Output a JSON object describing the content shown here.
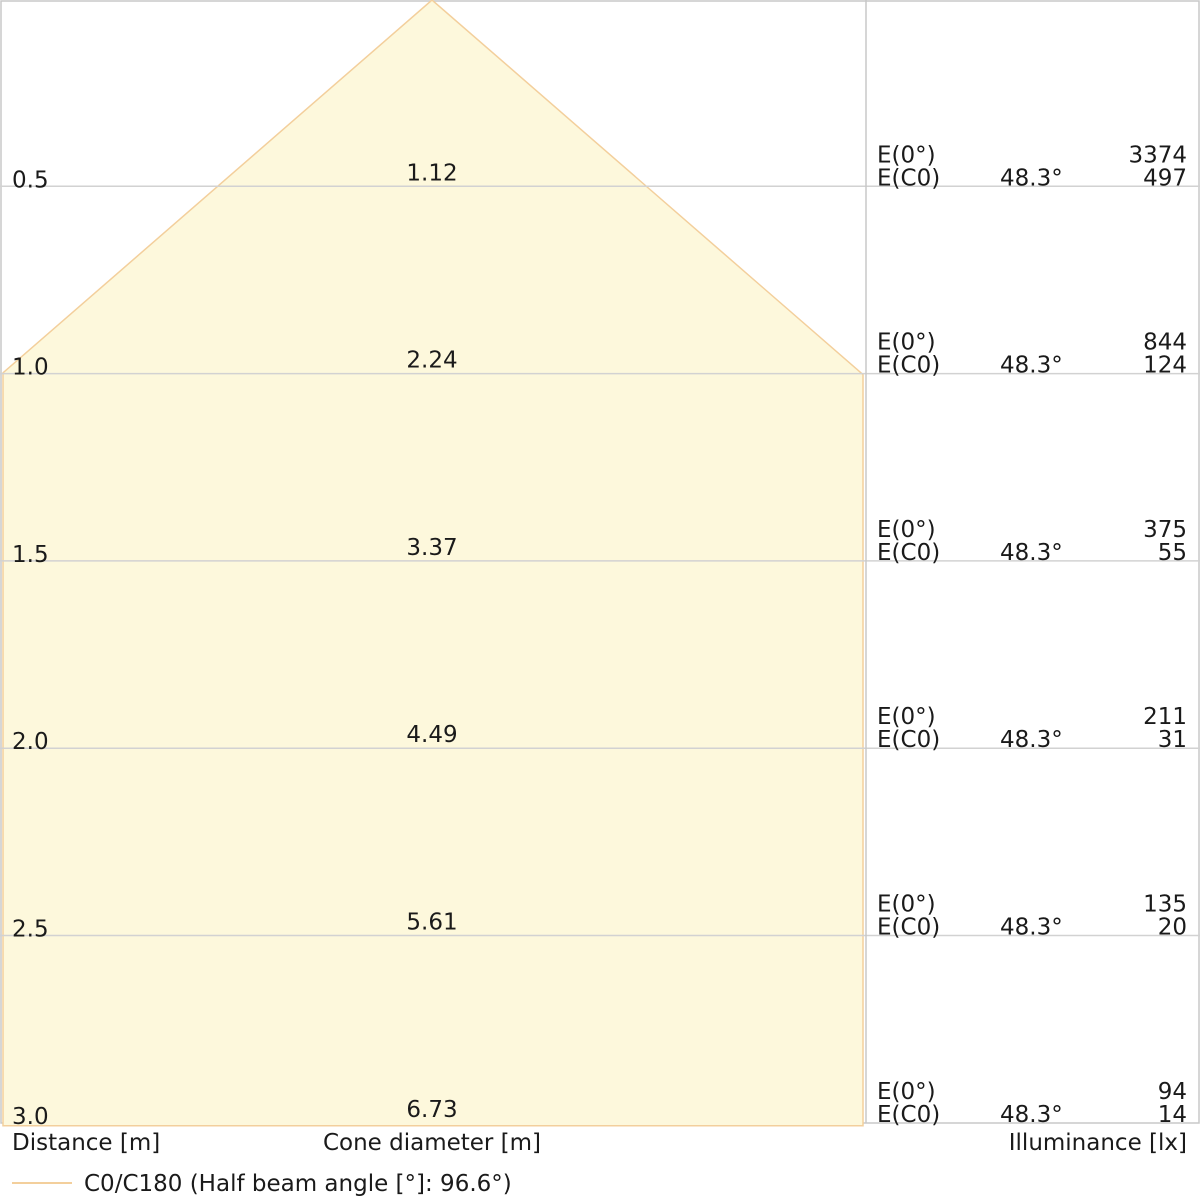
{
  "chart_data": {
    "type": "area",
    "rows": [
      {
        "distance": "0.5",
        "diameter": "1.12",
        "e0_label": "E(0°)",
        "ec0_label": "E(C0)",
        "angle": "48.3°",
        "e0": "3374",
        "ec0": "497"
      },
      {
        "distance": "1.0",
        "diameter": "2.24",
        "e0_label": "E(0°)",
        "ec0_label": "E(C0)",
        "angle": "48.3°",
        "e0": "844",
        "ec0": "124"
      },
      {
        "distance": "1.5",
        "diameter": "3.37",
        "e0_label": "E(0°)",
        "ec0_label": "E(C0)",
        "angle": "48.3°",
        "e0": "375",
        "ec0": "55"
      },
      {
        "distance": "2.0",
        "diameter": "4.49",
        "e0_label": "E(0°)",
        "ec0_label": "E(C0)",
        "angle": "48.3°",
        "e0": "211",
        "ec0": "31"
      },
      {
        "distance": "2.5",
        "diameter": "5.61",
        "e0_label": "E(0°)",
        "ec0_label": "E(C0)",
        "angle": "48.3°",
        "e0": "135",
        "ec0": "20"
      },
      {
        "distance": "3.0",
        "diameter": "6.73",
        "e0_label": "E(0°)",
        "ec0_label": "E(C0)",
        "angle": "48.3°",
        "e0": "94",
        "ec0": "14"
      }
    ],
    "cone": {
      "half_beam_angle": 96.6,
      "distances": [
        0.5,
        1.0,
        1.5,
        2.0,
        2.5,
        3.0
      ],
      "diameters": [
        1.12,
        2.24,
        3.37,
        4.49,
        5.61,
        6.73
      ]
    },
    "xlabel_distance": "Distance [m]",
    "xlabel_diameter": "Cone diameter [m]",
    "xlabel_illuminance": "Illuminance [lx]",
    "legend": "C0/C180 (Half beam angle [°]: 96.6°)",
    "colors": {
      "cone_fill": "#fdf8dc",
      "cone_stroke": "#f3cf9c",
      "grid": "#cccccc",
      "text": "#1a1a1a"
    }
  }
}
